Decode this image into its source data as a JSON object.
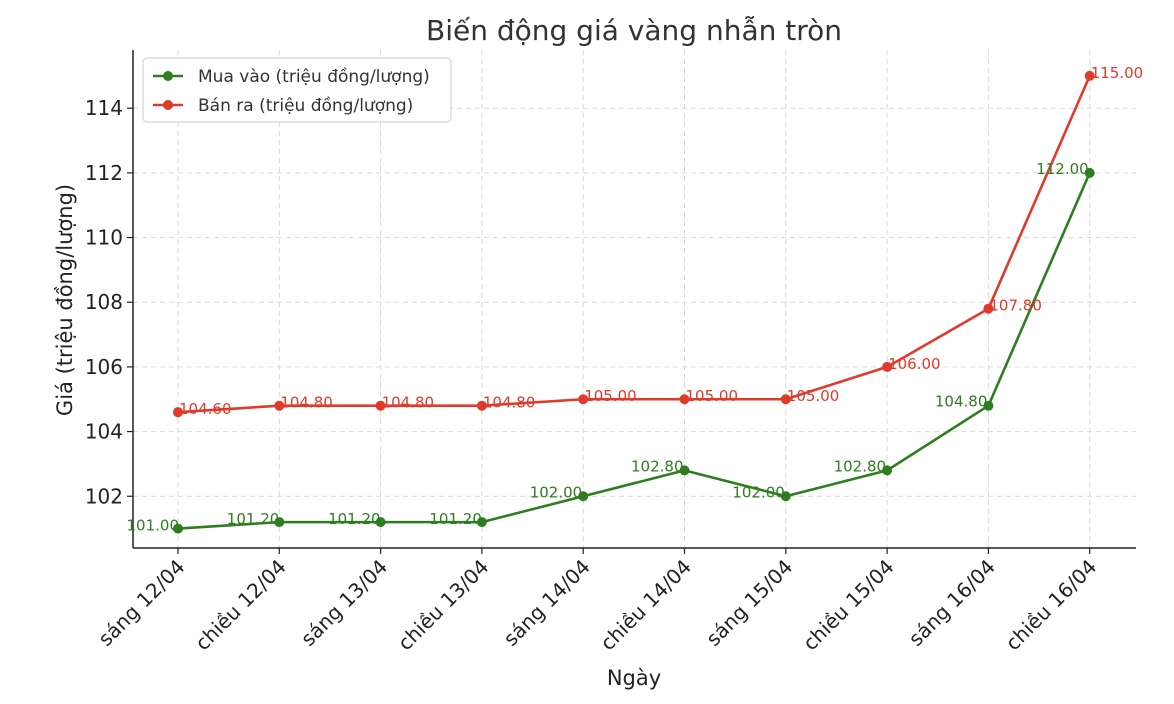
{
  "chart_data": {
    "type": "line",
    "title": "Biến động giá vàng nhẫn tròn",
    "xlabel": "Ngày",
    "ylabel": "Giá (triệu đồng/lượng)",
    "categories": [
      "sáng 12/04",
      "chiều 12/04",
      "sáng 13/04",
      "chiều 13/04",
      "sáng 14/04",
      "chiều 14/04",
      "sáng 15/04",
      "chiều 15/04",
      "sáng 16/04",
      "chiều 16/04"
    ],
    "ylim": [
      100.4,
      115.8
    ],
    "yticks": [
      102,
      104,
      106,
      108,
      110,
      112,
      114
    ],
    "grid": true,
    "legend_position": "top-left",
    "series": [
      {
        "name": "Mua vào (triệu đồng/lượng)",
        "color": "#2e7d1f",
        "values": [
          101.0,
          101.2,
          101.2,
          101.2,
          102.0,
          102.8,
          102.0,
          102.8,
          104.8,
          112.0
        ],
        "labels": [
          "101.00",
          "101.20",
          "101.20",
          "101.20",
          "102.00",
          "102.80",
          "102.00",
          "102.80",
          "104.80",
          "112.00"
        ]
      },
      {
        "name": "Bán ra (triệu đồng/lượng)",
        "color": "#e03a2a",
        "values": [
          104.6,
          104.8,
          104.8,
          104.8,
          105.0,
          105.0,
          105.0,
          106.0,
          107.8,
          115.0
        ],
        "labels": [
          "104.60",
          "104.80",
          "104.80",
          "104.80",
          "105.00",
          "105.00",
          "105.00",
          "106.00",
          "107.80",
          "115.00"
        ]
      }
    ]
  }
}
